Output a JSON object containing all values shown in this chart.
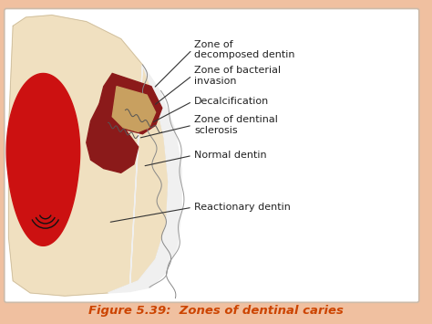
{
  "outer_bg": "#f0c0a0",
  "inner_bg": "#ffffff",
  "dentin_color": "#f0e0c0",
  "enamel_color": "#e8e8e8",
  "pulp_color": "#cc1111",
  "caries_dark": "#8b1a1a",
  "caries_brown": "#a0522d",
  "caries_tan": "#c8a060",
  "title": "Figure 5.39:  Zones of dentinal caries",
  "title_color": "#cc4400",
  "title_fontsize": 9.5,
  "labels": [
    "Zone of\ndecomposed dentin",
    "Zone of bacterial\ninvasion",
    "Decalcification",
    "Zone of dentinal\nsclerosis",
    "Normal dentin",
    "Reactionary dentin"
  ],
  "label_color": "#222222",
  "label_fontsize": 8.0
}
